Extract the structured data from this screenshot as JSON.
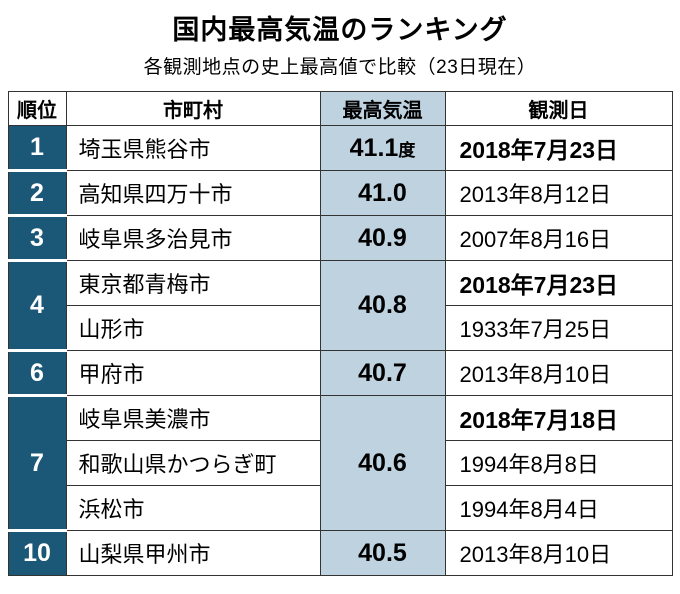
{
  "title": "国内最高気温のランキング",
  "subtitle": "各観測地点の史上最高値で比較（23日現在）",
  "colors": {
    "rank_bg": "#1b5878",
    "temp_bg": "#bed2e0",
    "line": "#333333"
  },
  "table": {
    "headers": {
      "rank": "順位",
      "city": "市町村",
      "temp": "最高気温",
      "date": "観測日"
    },
    "groups": [
      {
        "rank": "1",
        "temp": "41.1",
        "temp_suffix": "度",
        "rows": [
          {
            "city": "埼玉県熊谷市",
            "date": "2018年7月23日",
            "emphasis": true
          }
        ]
      },
      {
        "rank": "2",
        "temp": "41.0",
        "temp_suffix": "",
        "rows": [
          {
            "city": "高知県四万十市",
            "date": "2013年8月12日",
            "emphasis": false
          }
        ]
      },
      {
        "rank": "3",
        "temp": "40.9",
        "temp_suffix": "",
        "rows": [
          {
            "city": "岐阜県多治見市",
            "date": "2007年8月16日",
            "emphasis": false
          }
        ]
      },
      {
        "rank": "4",
        "temp": "40.8",
        "temp_suffix": "",
        "rows": [
          {
            "city": "東京都青梅市",
            "date": "2018年7月23日",
            "emphasis": true
          },
          {
            "city": "山形市",
            "date": "1933年7月25日",
            "emphasis": false
          }
        ]
      },
      {
        "rank": "6",
        "temp": "40.7",
        "temp_suffix": "",
        "rows": [
          {
            "city": "甲府市",
            "date": "2013年8月10日",
            "emphasis": false
          }
        ]
      },
      {
        "rank": "7",
        "temp": "40.6",
        "temp_suffix": "",
        "rows": [
          {
            "city": "岐阜県美濃市",
            "date": "2018年7月18日",
            "emphasis": true
          },
          {
            "city": "和歌山県かつらぎ町",
            "date": "1994年8月8日",
            "emphasis": false
          },
          {
            "city": "浜松市",
            "date": "1994年8月4日",
            "emphasis": false
          }
        ]
      },
      {
        "rank": "10",
        "temp": "40.5",
        "temp_suffix": "",
        "rows": [
          {
            "city": "山梨県甲州市",
            "date": "2013年8月10日",
            "emphasis": false
          }
        ]
      }
    ]
  },
  "chart_data": {
    "type": "table",
    "title": "国内最高気温のランキング",
    "subtitle": "各観測地点の史上最高値で比較（23日現在）",
    "columns": [
      "順位",
      "市町村",
      "最高気温",
      "観測日"
    ],
    "rows": [
      [
        "1",
        "埼玉県熊谷市",
        "41.1度",
        "2018年7月23日"
      ],
      [
        "2",
        "高知県四万十市",
        "41.0",
        "2013年8月12日"
      ],
      [
        "3",
        "岐阜県多治見市",
        "40.9",
        "2007年8月16日"
      ],
      [
        "4",
        "東京都青梅市",
        "40.8",
        "2018年7月23日"
      ],
      [
        "4",
        "山形市",
        "40.8",
        "1933年7月25日"
      ],
      [
        "6",
        "甲府市",
        "40.7",
        "2013年8月10日"
      ],
      [
        "7",
        "岐阜県美濃市",
        "40.6",
        "2018年7月18日"
      ],
      [
        "7",
        "和歌山県かつらぎ町",
        "40.6",
        "1994年8月8日"
      ],
      [
        "7",
        "浜松市",
        "40.6",
        "1994年8月4日"
      ],
      [
        "10",
        "山梨県甲州市",
        "40.5",
        "2013年8月10日"
      ]
    ]
  }
}
